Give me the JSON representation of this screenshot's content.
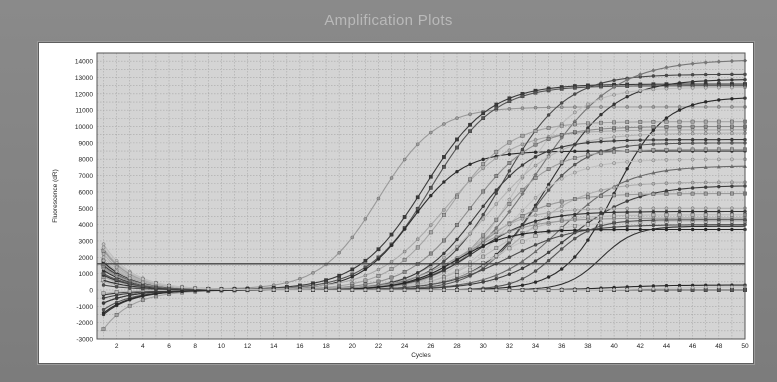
{
  "window": {
    "title": "Amplification Plots"
  },
  "colors": {
    "window_bg": "#808080",
    "plot_bg": "#d4d4d4",
    "grid": "#a8a8a8",
    "threshold": "#444444"
  },
  "chart_data": {
    "type": "line",
    "title": "",
    "xlabel": "Cycles",
    "ylabel": "Fluorescence (dR)",
    "xlim": [
      0.5,
      50
    ],
    "ylim": [
      -3000,
      14500
    ],
    "x_ticks": [
      2,
      4,
      6,
      8,
      10,
      12,
      14,
      16,
      18,
      20,
      22,
      24,
      26,
      28,
      30,
      32,
      34,
      36,
      38,
      40,
      42,
      44,
      46,
      48,
      50
    ],
    "y_ticks": [
      -3000,
      -2000,
      -1000,
      0,
      1000,
      2000,
      3000,
      4000,
      5000,
      6000,
      7000,
      8000,
      9000,
      10000,
      11000,
      12000,
      13000,
      14000
    ],
    "y_ticklabels": [
      "-3000",
      "-2000",
      "-1000",
      "0",
      "1000",
      "2000",
      "3000",
      "4000",
      "5000",
      "6000",
      "7000",
      "8000",
      "9000",
      "10000",
      "11000",
      "12000",
      "13000",
      "14000"
    ],
    "grid": true,
    "legend": "none",
    "threshold": 1600,
    "series": [
      {
        "plateau": 11200,
        "midpoint": 22.0,
        "slope": 2.2,
        "start": 2500,
        "color": "#9a9a9a",
        "marker": "circle"
      },
      {
        "plateau": 12600,
        "midpoint": 25.5,
        "slope": 2.5,
        "start": 1500,
        "color": "#3a3a3a",
        "marker": "square"
      },
      {
        "plateau": 12500,
        "midpoint": 26.0,
        "slope": 2.4,
        "start": 1800,
        "color": "#555555",
        "marker": "square"
      },
      {
        "plateau": 8500,
        "midpoint": 24.5,
        "slope": 2.0,
        "start": -800,
        "color": "#2c2c2c",
        "marker": "circle"
      },
      {
        "plateau": 9800,
        "midpoint": 27.0,
        "slope": 2.6,
        "start": 2200,
        "color": "#aaaaaa",
        "marker": "circle"
      },
      {
        "plateau": 13200,
        "midpoint": 31.5,
        "slope": 2.4,
        "start": 1000,
        "color": "#4a4a4a",
        "marker": "circle"
      },
      {
        "plateau": 14100,
        "midpoint": 34.0,
        "slope": 3.0,
        "start": 500,
        "color": "#777777",
        "marker": "diamond"
      },
      {
        "plateau": 12900,
        "midpoint": 35.0,
        "slope": 2.5,
        "start": -1500,
        "color": "#333333",
        "marker": "circle"
      },
      {
        "plateau": 12400,
        "midpoint": 32.5,
        "slope": 2.3,
        "start": 2800,
        "color": "#bdbdbd",
        "marker": "circle"
      },
      {
        "plateau": 11800,
        "midpoint": 40.0,
        "slope": 1.9,
        "start": 1200,
        "color": "#2a2a2a",
        "marker": "circle"
      },
      {
        "plateau": 10300,
        "midpoint": 27.5,
        "slope": 2.3,
        "start": 800,
        "color": "#a5a5a5",
        "marker": "square"
      },
      {
        "plateau": 10000,
        "midpoint": 29.0,
        "slope": 2.4,
        "start": 1400,
        "color": "#8e8e8e",
        "marker": "square"
      },
      {
        "plateau": 9600,
        "midpoint": 30.5,
        "slope": 2.6,
        "start": 2000,
        "color": "#b5b5b5",
        "marker": "circle"
      },
      {
        "plateau": 9200,
        "midpoint": 29.5,
        "slope": 2.2,
        "start": -300,
        "color": "#3d3d3d",
        "marker": "circle"
      },
      {
        "plateau": 9000,
        "midpoint": 33.5,
        "slope": 2.0,
        "start": 1000,
        "color": "#5a5a5a",
        "marker": "circle"
      },
      {
        "plateau": 8600,
        "midpoint": 31.0,
        "slope": 2.2,
        "start": 2400,
        "color": "#9e9e9e",
        "marker": "square"
      },
      {
        "plateau": 8000,
        "midpoint": 32.0,
        "slope": 2.3,
        "start": 500,
        "color": "#c0c0c0",
        "marker": "circle"
      },
      {
        "plateau": 7600,
        "midpoint": 36.0,
        "slope": 2.5,
        "start": 1800,
        "color": "#6a6a6a",
        "marker": "triangle"
      },
      {
        "plateau": 6600,
        "midpoint": 33.0,
        "slope": 2.4,
        "start": 1000,
        "color": "#aeaeae",
        "marker": "circle"
      },
      {
        "plateau": 6400,
        "midpoint": 36.5,
        "slope": 2.6,
        "start": -500,
        "color": "#404040",
        "marker": "circle"
      },
      {
        "plateau": 5900,
        "midpoint": 30.0,
        "slope": 2.5,
        "start": 1600,
        "color": "#9c9c9c",
        "marker": "square"
      },
      {
        "plateau": 5000,
        "midpoint": 29.0,
        "slope": 2.1,
        "start": 2200,
        "color": "#b0b0b0",
        "marker": "circle"
      },
      {
        "plateau": 4800,
        "midpoint": 29.5,
        "slope": 2.3,
        "start": 900,
        "color": "#363636",
        "marker": "circle"
      },
      {
        "plateau": 4600,
        "midpoint": 30.5,
        "slope": 2.2,
        "start": -200,
        "color": "#b8b8b8",
        "marker": "square"
      },
      {
        "plateau": 4400,
        "midpoint": 28.5,
        "slope": 2.4,
        "start": 1300,
        "color": "#9a9a9a",
        "marker": "circle"
      },
      {
        "plateau": 4200,
        "midpoint": 31.0,
        "slope": 2.3,
        "start": 600,
        "color": "#c4c4c4",
        "marker": "square"
      },
      {
        "plateau": 4000,
        "midpoint": 32.0,
        "slope": 2.5,
        "start": 300,
        "color": "#4e4e4e",
        "marker": "circle"
      },
      {
        "plateau": 3700,
        "midpoint": 28.0,
        "slope": 2.0,
        "start": 1700,
        "color": "#262626",
        "marker": "circle"
      },
      {
        "plateau": 4300,
        "midpoint": 35.5,
        "slope": 1.5,
        "start": -1200,
        "color": "#555555",
        "marker": "circle"
      },
      {
        "plateau": 3900,
        "midpoint": 39.0,
        "slope": 1.3,
        "start": 600,
        "color": "#303030",
        "marker": "none"
      },
      {
        "plateau": 0,
        "midpoint": 25,
        "slope": 2,
        "start": -2400,
        "color": "#a0a0a0",
        "marker": "square"
      },
      {
        "plateau": 0,
        "midpoint": 25,
        "slope": 2,
        "start": -800,
        "color": "#3a3a3a",
        "marker": "circle"
      },
      {
        "plateau": 0,
        "midpoint": 25,
        "slope": 2,
        "start": 1800,
        "color": "#b5b5b5",
        "marker": "circle"
      },
      {
        "plateau": 0,
        "midpoint": 25,
        "slope": 2,
        "start": 1000,
        "color": "#5a5a5a",
        "marker": "square"
      },
      {
        "plateau": 300,
        "midpoint": 40,
        "slope": 2,
        "start": -1400,
        "color": "#2a2a2a",
        "marker": "circle"
      },
      {
        "plateau": 200,
        "midpoint": 44,
        "slope": 2,
        "start": 2600,
        "color": "#c0c0c0",
        "marker": "circle"
      }
    ]
  }
}
